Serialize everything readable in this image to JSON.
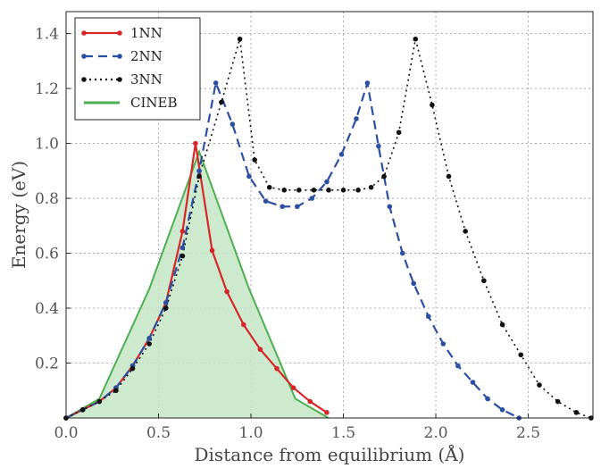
{
  "chart_data": {
    "type": "line",
    "xlabel": "Distance from equilibrium (Å)",
    "ylabel": "Energy (eV)",
    "xlim": [
      0,
      2.85
    ],
    "ylim": [
      0,
      1.48
    ],
    "x_ticks": [
      "0.0",
      "0.5",
      "1.0",
      "1.5",
      "2.0",
      "2.5"
    ],
    "y_ticks": [
      "0.2",
      "0.4",
      "0.6",
      "0.8",
      "1.0",
      "1.2",
      "1.4"
    ],
    "grid": true,
    "legend_position": "top-left",
    "series": [
      {
        "name": "1NN",
        "style": "solid-markers",
        "color": "#d62728",
        "points": [
          [
            0.0,
            0.0
          ],
          [
            0.09,
            0.03
          ],
          [
            0.18,
            0.06
          ],
          [
            0.27,
            0.11
          ],
          [
            0.36,
            0.19
          ],
          [
            0.45,
            0.29
          ],
          [
            0.54,
            0.42
          ],
          [
            0.63,
            0.68
          ],
          [
            0.7,
            1.0
          ],
          [
            0.79,
            0.61
          ],
          [
            0.87,
            0.46
          ],
          [
            0.96,
            0.34
          ],
          [
            1.05,
            0.25
          ],
          [
            1.14,
            0.18
          ],
          [
            1.23,
            0.11
          ],
          [
            1.32,
            0.06
          ],
          [
            1.41,
            0.02
          ]
        ]
      },
      {
        "name": "2NN",
        "style": "dashed-markers",
        "color": "#2b4fa3",
        "points": [
          [
            0.0,
            0.0
          ],
          [
            0.09,
            0.03
          ],
          [
            0.18,
            0.06
          ],
          [
            0.27,
            0.11
          ],
          [
            0.36,
            0.19
          ],
          [
            0.45,
            0.29
          ],
          [
            0.54,
            0.42
          ],
          [
            0.63,
            0.62
          ],
          [
            0.72,
            0.9
          ],
          [
            0.81,
            1.22
          ],
          [
            0.9,
            1.07
          ],
          [
            0.99,
            0.88
          ],
          [
            1.08,
            0.79
          ],
          [
            1.17,
            0.77
          ],
          [
            1.25,
            0.77
          ],
          [
            1.33,
            0.8
          ],
          [
            1.41,
            0.86
          ],
          [
            1.49,
            0.96
          ],
          [
            1.57,
            1.09
          ],
          [
            1.63,
            1.22
          ],
          [
            1.69,
            0.99
          ],
          [
            1.75,
            0.77
          ],
          [
            1.82,
            0.6
          ],
          [
            1.88,
            0.49
          ],
          [
            1.96,
            0.37
          ],
          [
            2.04,
            0.27
          ],
          [
            2.12,
            0.19
          ],
          [
            2.2,
            0.13
          ],
          [
            2.28,
            0.07
          ],
          [
            2.36,
            0.03
          ],
          [
            2.45,
            0.0
          ]
        ]
      },
      {
        "name": "3NN",
        "style": "dotted-markers",
        "color": "#111111",
        "points": [
          [
            0.0,
            0.0
          ],
          [
            0.09,
            0.03
          ],
          [
            0.18,
            0.06
          ],
          [
            0.27,
            0.1
          ],
          [
            0.36,
            0.18
          ],
          [
            0.45,
            0.27
          ],
          [
            0.54,
            0.4
          ],
          [
            0.63,
            0.59
          ],
          [
            0.72,
            0.88
          ],
          [
            0.84,
            1.15
          ],
          [
            0.94,
            1.38
          ],
          [
            1.02,
            0.94
          ],
          [
            1.1,
            0.84
          ],
          [
            1.18,
            0.83
          ],
          [
            1.26,
            0.83
          ],
          [
            1.34,
            0.83
          ],
          [
            1.42,
            0.83
          ],
          [
            1.5,
            0.83
          ],
          [
            1.58,
            0.83
          ],
          [
            1.65,
            0.84
          ],
          [
            1.72,
            0.88
          ],
          [
            1.8,
            1.04
          ],
          [
            1.89,
            1.38
          ],
          [
            1.98,
            1.14
          ],
          [
            2.07,
            0.88
          ],
          [
            2.16,
            0.68
          ],
          [
            2.26,
            0.5
          ],
          [
            2.36,
            0.34
          ],
          [
            2.46,
            0.23
          ],
          [
            2.56,
            0.12
          ],
          [
            2.66,
            0.06
          ],
          [
            2.76,
            0.02
          ],
          [
            2.84,
            0.0
          ]
        ]
      },
      {
        "name": "CINEB",
        "style": "filled-area",
        "color": "#4caf50",
        "fill": "#c6e6c6",
        "points": [
          [
            0.0,
            0.0
          ],
          [
            0.18,
            0.07
          ],
          [
            0.45,
            0.47
          ],
          [
            0.72,
            0.97
          ],
          [
            0.99,
            0.47
          ],
          [
            1.24,
            0.07
          ],
          [
            1.42,
            0.0
          ]
        ]
      }
    ]
  }
}
